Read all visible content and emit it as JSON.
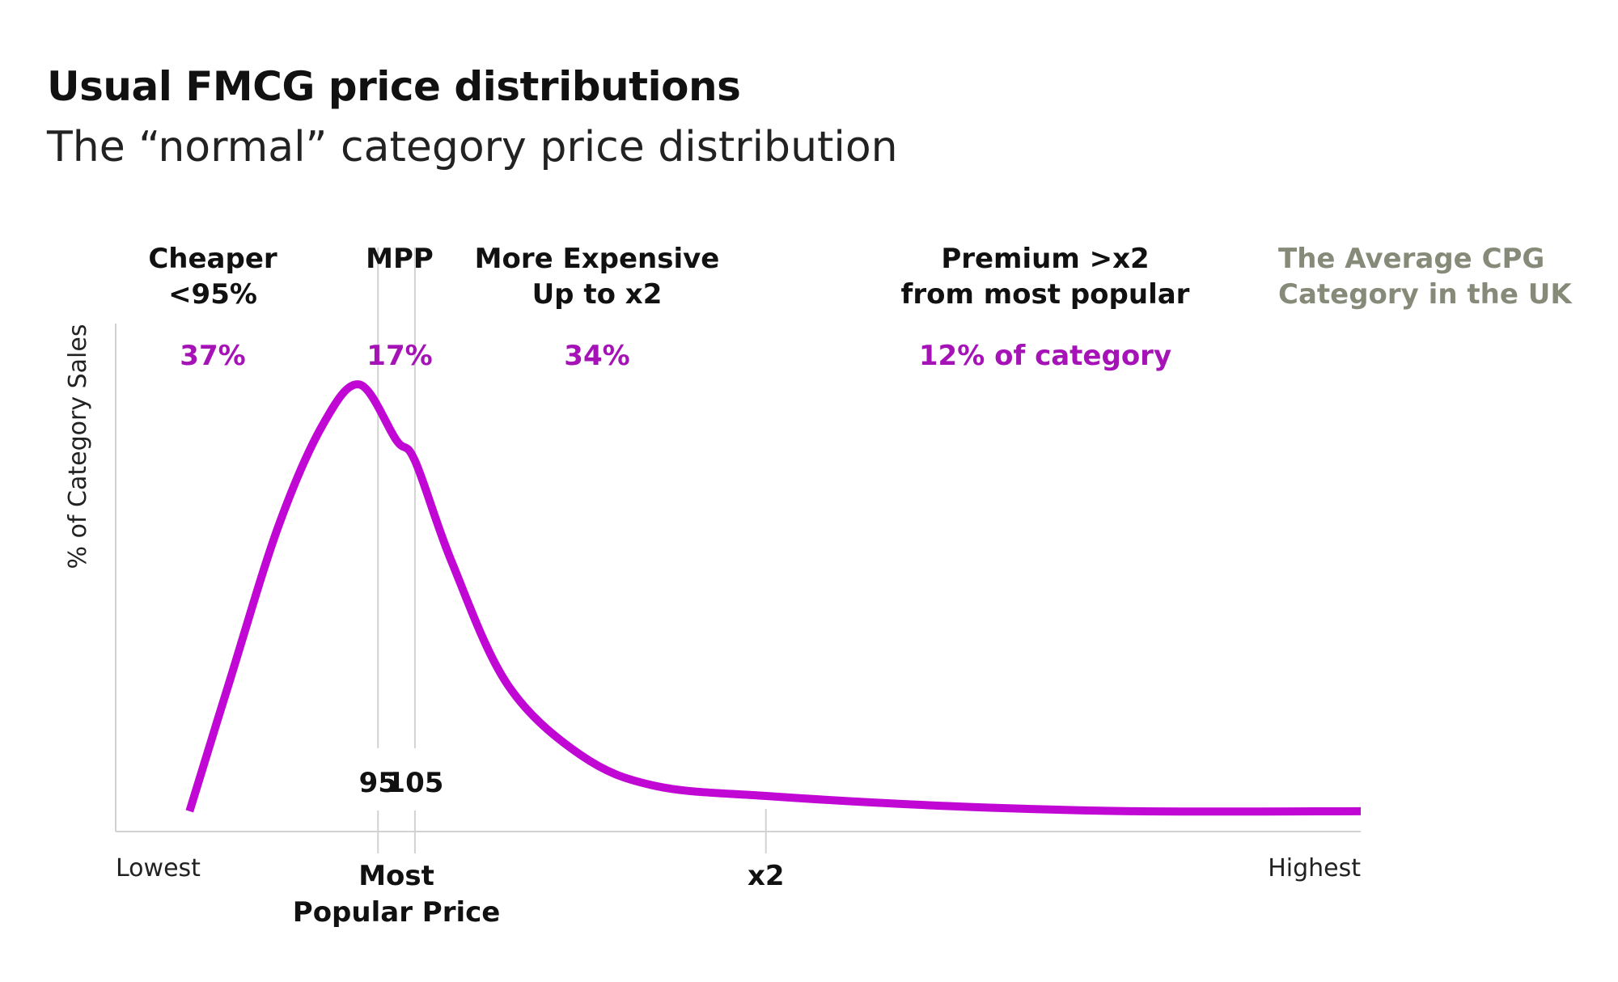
{
  "chart_data": {
    "type": "line",
    "title": "Usual FMCG price distributions",
    "subtitle": "The “normal” category price distribution",
    "ylabel": "% of Category Sales",
    "x_axis": {
      "start_label": "Lowest",
      "end_label": "Highest",
      "ticks": [
        {
          "label": "Most Popular Price",
          "lines": [
            "Most",
            "Popular Price"
          ],
          "x": 100
        },
        {
          "label": "x2",
          "lines": [
            "x2"
          ],
          "x": 200
        }
      ],
      "boundary_labels": [
        {
          "label": "95",
          "x": 95
        },
        {
          "label": "105",
          "x": 105
        }
      ],
      "xlim": [
        24,
        361
      ]
    },
    "ylim": [
      0,
      100
    ],
    "grid": false,
    "segments": [
      {
        "lines": [
          "Cheaper",
          "<95%"
        ],
        "share": "37%"
      },
      {
        "lines": [
          "MPP"
        ],
        "share": "17%"
      },
      {
        "lines": [
          "More Expensive",
          "Up to x2"
        ],
        "share": "34%"
      },
      {
        "lines": [
          "Premium >x2",
          "from most popular"
        ],
        "share": "12% of category"
      }
    ],
    "annotation": {
      "lines": [
        "The Average CPG",
        "Category in the UK"
      ]
    },
    "series": [
      {
        "x": [
          44,
          55,
          68,
          80,
          90,
          100,
          105,
          115,
          130,
          150,
          170,
          200,
          250,
          300,
          361
        ],
        "y": [
          4,
          30,
          60,
          80,
          88,
          77,
          73,
          53,
          29,
          15,
          9,
          7,
          5,
          4,
          4
        ]
      }
    ],
    "colors": {
      "curve": "#c107d4",
      "share": "#a513b7",
      "annotation": "#868a78",
      "axis": "#d2d2d2"
    }
  }
}
